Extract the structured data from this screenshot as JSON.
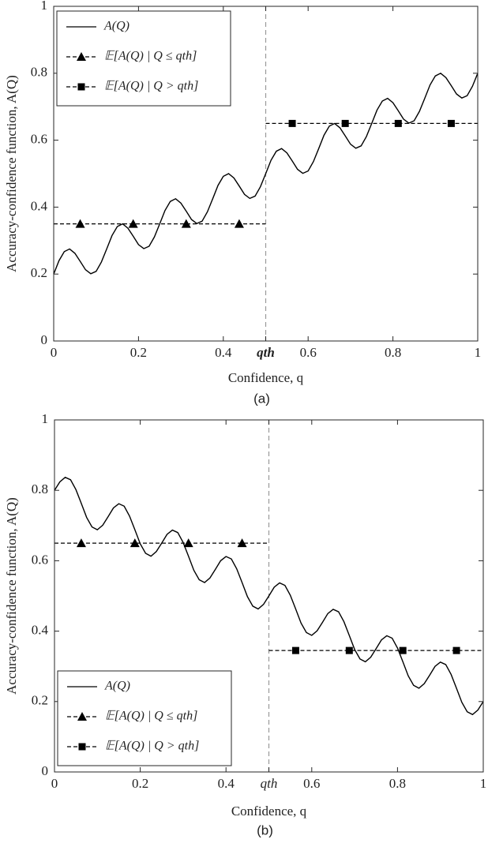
{
  "chart_data": [
    {
      "type": "line",
      "caption": "(a)",
      "xlabel": "Confidence, q",
      "ylabel": "Accuracy-confidence function, A(Q)",
      "xlim": [
        0,
        1
      ],
      "ylim": [
        0,
        1
      ],
      "xticks": [
        0,
        0.2,
        0.4,
        {
          "value": 0.5,
          "label": "qth"
        },
        0.6,
        0.8,
        1
      ],
      "yticks": [
        0,
        0.2,
        0.4,
        0.6,
        0.8,
        1
      ],
      "threshold_color": "#999999",
      "legend": "upper left",
      "series": [
        {
          "name": "A(Q)",
          "color": "#000000",
          "style": "solid",
          "x": [
            0,
            0.0125,
            0.025,
            0.0375,
            0.05,
            0.0625,
            0.075,
            0.0875,
            0.1,
            0.1125,
            0.125,
            0.1375,
            0.15,
            0.1625,
            0.175,
            0.1875,
            0.2,
            0.2125,
            0.225,
            0.2375,
            0.25,
            0.2625,
            0.275,
            0.2875,
            0.3,
            0.3125,
            0.325,
            0.3375,
            0.35,
            0.3625,
            0.375,
            0.3875,
            0.4,
            0.4125,
            0.425,
            0.4375,
            0.45,
            0.4625,
            0.475,
            0.4875,
            0.5,
            0.5125,
            0.525,
            0.5375,
            0.55,
            0.5625,
            0.575,
            0.5875,
            0.6,
            0.6125,
            0.625,
            0.6375,
            0.65,
            0.6625,
            0.675,
            0.6875,
            0.7,
            0.7125,
            0.725,
            0.7375,
            0.75,
            0.7625,
            0.775,
            0.7875,
            0.8,
            0.8125,
            0.825,
            0.8375,
            0.85,
            0.8625,
            0.875,
            0.8875,
            0.9,
            0.9125,
            0.925,
            0.9375,
            0.95,
            0.9625,
            0.975,
            0.9875,
            1
          ],
          "values": [
            0.2,
            0.24,
            0.267,
            0.275,
            0.262,
            0.238,
            0.213,
            0.201,
            0.208,
            0.236,
            0.275,
            0.315,
            0.342,
            0.35,
            0.337,
            0.313,
            0.288,
            0.276,
            0.283,
            0.311,
            0.35,
            0.39,
            0.417,
            0.425,
            0.412,
            0.388,
            0.363,
            0.351,
            0.358,
            0.386,
            0.425,
            0.465,
            0.492,
            0.5,
            0.487,
            0.463,
            0.438,
            0.426,
            0.433,
            0.461,
            0.5,
            0.54,
            0.567,
            0.575,
            0.562,
            0.538,
            0.513,
            0.501,
            0.508,
            0.536,
            0.575,
            0.615,
            0.642,
            0.65,
            0.637,
            0.613,
            0.588,
            0.576,
            0.583,
            0.611,
            0.65,
            0.69,
            0.717,
            0.725,
            0.712,
            0.688,
            0.663,
            0.651,
            0.658,
            0.686,
            0.725,
            0.765,
            0.792,
            0.8,
            0.787,
            0.763,
            0.738,
            0.726,
            0.733,
            0.761,
            0.8
          ]
        },
        {
          "name": "𝔼[A(Q) | Q ≤ qth]",
          "color": "#000000",
          "style": "dashed",
          "marker": "triangle",
          "span": [
            0,
            0.5
          ],
          "x": [
            0.0625,
            0.1875,
            0.3125,
            0.4375
          ],
          "values": [
            0.35,
            0.35,
            0.35,
            0.35
          ]
        },
        {
          "name": "𝔼[A(Q) | Q > qth]",
          "color": "#000000",
          "style": "dashed",
          "marker": "square",
          "span": [
            0.5,
            1
          ],
          "x": [
            0.5625,
            0.6875,
            0.8125,
            0.9375
          ],
          "values": [
            0.65,
            0.65,
            0.65,
            0.65
          ]
        }
      ]
    },
    {
      "type": "line",
      "caption": "(b)",
      "xlabel": "Confidence, q",
      "ylabel": "Accuracy-confidence function, A(Q)",
      "xlim": [
        0,
        1
      ],
      "ylim": [
        0,
        1
      ],
      "xticks": [
        0,
        0.2,
        0.4,
        {
          "value": 0.5,
          "label": "qth"
        },
        0.6,
        0.8,
        1
      ],
      "yticks": [
        0,
        0.2,
        0.4,
        0.6,
        0.8,
        1
      ],
      "threshold_color": "#999999",
      "legend": "lower left",
      "series": [
        {
          "name": "A(Q)",
          "color": "#000000",
          "style": "solid",
          "x": [
            0,
            0.0125,
            0.025,
            0.0375,
            0.05,
            0.0625,
            0.075,
            0.0875,
            0.1,
            0.1125,
            0.125,
            0.1375,
            0.15,
            0.1625,
            0.175,
            0.1875,
            0.2,
            0.2125,
            0.225,
            0.2375,
            0.25,
            0.2625,
            0.275,
            0.2875,
            0.3,
            0.3125,
            0.325,
            0.3375,
            0.35,
            0.3625,
            0.375,
            0.3875,
            0.4,
            0.4125,
            0.425,
            0.4375,
            0.45,
            0.4625,
            0.475,
            0.4875,
            0.5,
            0.5125,
            0.525,
            0.5375,
            0.55,
            0.5625,
            0.575,
            0.5875,
            0.6,
            0.6125,
            0.625,
            0.6375,
            0.65,
            0.6625,
            0.675,
            0.6875,
            0.7,
            0.7125,
            0.725,
            0.7375,
            0.75,
            0.7625,
            0.775,
            0.7875,
            0.8,
            0.8125,
            0.825,
            0.8375,
            0.85,
            0.8625,
            0.875,
            0.8875,
            0.9,
            0.9125,
            0.925,
            0.9375,
            0.95,
            0.9625,
            0.975,
            0.9875,
            1
          ],
          "values": [
            0.8,
            0.824,
            0.837,
            0.83,
            0.802,
            0.763,
            0.723,
            0.696,
            0.688,
            0.701,
            0.725,
            0.75,
            0.762,
            0.755,
            0.727,
            0.688,
            0.648,
            0.621,
            0.613,
            0.626,
            0.65,
            0.675,
            0.687,
            0.68,
            0.652,
            0.613,
            0.573,
            0.546,
            0.538,
            0.551,
            0.575,
            0.6,
            0.612,
            0.605,
            0.577,
            0.538,
            0.498,
            0.471,
            0.463,
            0.476,
            0.5,
            0.525,
            0.537,
            0.53,
            0.502,
            0.463,
            0.423,
            0.396,
            0.388,
            0.401,
            0.425,
            0.45,
            0.462,
            0.455,
            0.427,
            0.388,
            0.348,
            0.321,
            0.313,
            0.326,
            0.35,
            0.375,
            0.387,
            0.38,
            0.352,
            0.313,
            0.273,
            0.246,
            0.238,
            0.251,
            0.275,
            0.3,
            0.312,
            0.305,
            0.277,
            0.238,
            0.198,
            0.171,
            0.163,
            0.176,
            0.2
          ]
        },
        {
          "name": "𝔼[A(Q) | Q ≤ qth]",
          "color": "#000000",
          "style": "dashed",
          "marker": "triangle",
          "span": [
            0,
            0.5
          ],
          "x": [
            0.0625,
            0.1875,
            0.3125,
            0.4375
          ],
          "values": [
            0.65,
            0.65,
            0.65,
            0.65
          ]
        },
        {
          "name": "𝔼[A(Q) | Q > qth]",
          "color": "#000000",
          "style": "dashed",
          "marker": "square",
          "span": [
            0.5,
            1
          ],
          "x": [
            0.5625,
            0.6875,
            0.8125,
            0.9375
          ],
          "values": [
            0.345,
            0.345,
            0.345,
            0.345
          ]
        }
      ]
    }
  ]
}
